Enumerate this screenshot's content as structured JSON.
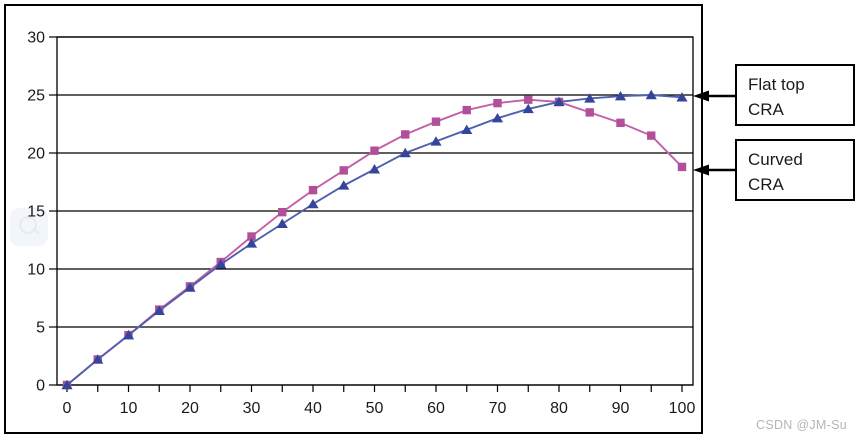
{
  "annotations": [
    {
      "line1": "Flat top",
      "line2": "CRA"
    },
    {
      "line1": "Curved",
      "line2": "CRA"
    }
  ],
  "watermark": {
    "text": "CSDN @JM-Su"
  },
  "chart_data": {
    "type": "line",
    "x": [
      0,
      5,
      10,
      15,
      20,
      25,
      30,
      35,
      40,
      45,
      50,
      55,
      60,
      65,
      70,
      75,
      80,
      85,
      90,
      95,
      100
    ],
    "series": [
      {
        "name": "Flat top CRA",
        "marker": "triangle",
        "line_color": "#5160ae",
        "marker_color": "#36459c",
        "values": [
          0,
          2.2,
          4.3,
          6.4,
          8.4,
          10.4,
          12.2,
          13.9,
          15.6,
          17.2,
          18.6,
          20.0,
          21.0,
          22.0,
          23.0,
          23.8,
          24.4,
          24.7,
          24.9,
          25.0,
          24.8
        ]
      },
      {
        "name": "Curved CRA",
        "marker": "square",
        "line_color": "#c45fa7",
        "marker_color": "#b0509a",
        "values": [
          0,
          2.2,
          4.3,
          6.5,
          8.5,
          10.6,
          12.8,
          14.9,
          16.8,
          18.5,
          20.2,
          21.6,
          22.7,
          23.7,
          24.3,
          24.6,
          24.4,
          23.5,
          22.6,
          21.5,
          18.8
        ]
      }
    ],
    "xlim": [
      0,
      100
    ],
    "ylim": [
      0,
      30
    ],
    "x_tick_labels": [
      0,
      10,
      20,
      30,
      40,
      50,
      60,
      70,
      80,
      90,
      100
    ],
    "x_minor_tick_step": 5,
    "y_tick_labels": [
      0,
      5,
      10,
      15,
      20,
      25,
      30
    ],
    "grid": "horizontal",
    "legend_position": "arrow callouts at right",
    "axis_color": "#000000"
  }
}
